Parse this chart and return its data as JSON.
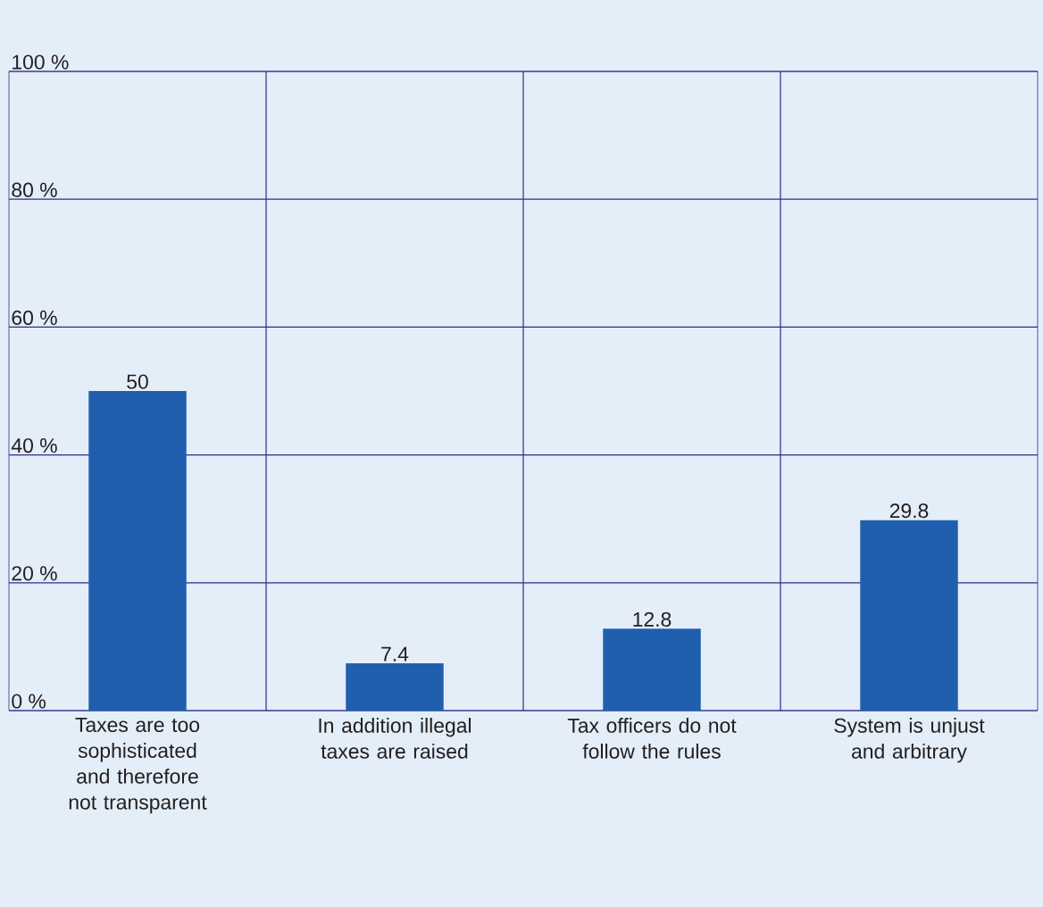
{
  "chart_data": {
    "type": "bar",
    "categories": [
      "Taxes are too sophisticated and therefore not transparent",
      "In addition illegal taxes are raised",
      "Tax officers do not follow the rules",
      "System is unjust and arbitrary"
    ],
    "values": [
      50,
      7.4,
      12.8,
      29.8
    ],
    "color": "#1f5fae",
    "ylim": [
      0,
      100
    ],
    "yticks": [
      {
        "value": 0,
        "label": "0 %"
      },
      {
        "value": 20,
        "label": "20 %"
      },
      {
        "value": 40,
        "label": "40 %"
      },
      {
        "value": 60,
        "label": "60 %"
      },
      {
        "value": 80,
        "label": "80 %"
      },
      {
        "value": 100,
        "label": "100 %"
      }
    ],
    "grid": true,
    "data_labels": true
  }
}
